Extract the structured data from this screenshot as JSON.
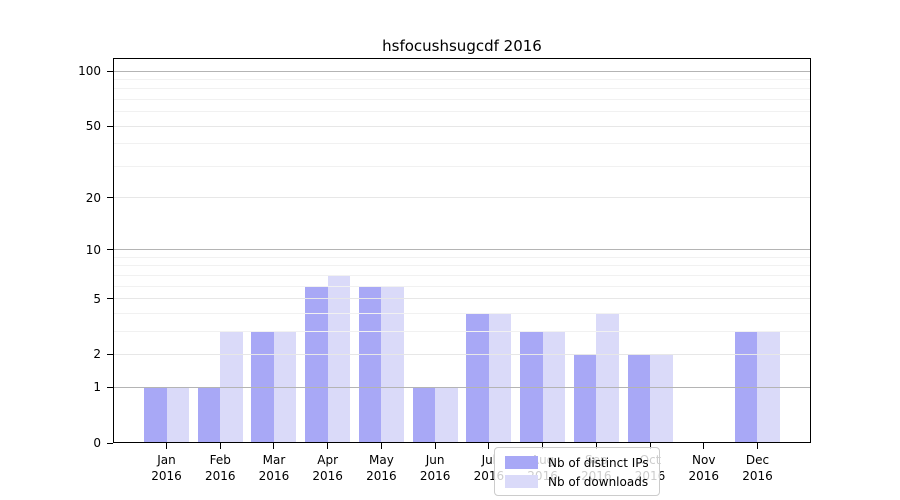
{
  "chart_data": {
    "type": "bar",
    "title": "hsfocushsugcdf 2016",
    "categories": [
      "Jan",
      "Feb",
      "Mar",
      "Apr",
      "May",
      "Jun",
      "Jul",
      "Aug",
      "Sep",
      "Oct",
      "Nov",
      "Dec"
    ],
    "year_label": "2016",
    "series": [
      {
        "name": "Nb of distinct IPs",
        "color": "#a8a8f6",
        "values": [
          1,
          1,
          3,
          6,
          6,
          1,
          4,
          3,
          2,
          2,
          0,
          3
        ]
      },
      {
        "name": "Nb of downloads",
        "color": "#dadaf9",
        "values": [
          1,
          3,
          3,
          7,
          6,
          1,
          4,
          3,
          4,
          2,
          0,
          3
        ]
      }
    ],
    "yaxis": {
      "scale": "log1p",
      "tick_values": [
        0,
        1,
        2,
        5,
        10,
        20,
        50,
        100
      ],
      "major_gridlines": [
        1,
        10,
        100
      ],
      "mid_gridlines": [
        2,
        5,
        20,
        50
      ],
      "minor_gridlines": [
        3,
        4,
        6,
        7,
        8,
        9,
        30,
        40,
        60,
        70,
        80,
        90
      ],
      "ylim_bottom": 0
    },
    "legend": {
      "position": "lower-center",
      "entries": [
        "Nb of distinct IPs",
        "Nb of downloads"
      ]
    },
    "grid": true
  }
}
